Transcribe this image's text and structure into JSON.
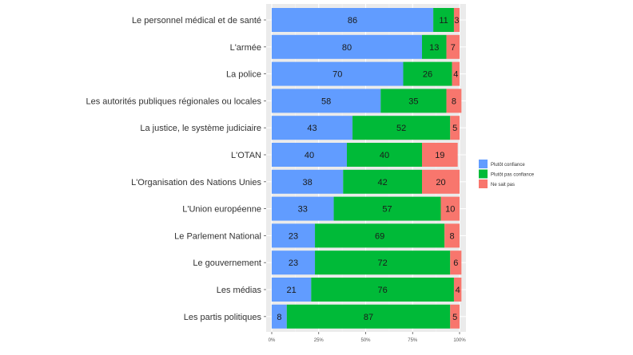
{
  "chart_data": {
    "type": "bar",
    "orientation": "horizontal",
    "stacked": true,
    "categories": [
      "Le personnel médical et de santé",
      "L'armée",
      "La police",
      "Les autorités publiques régionales ou locales",
      "La justice, le système judiciaire",
      "L'OTAN",
      "L'Organisation des Nations Unies",
      "L'Union européenne",
      "Le Parlement National",
      "Le gouvernement",
      "Les médias",
      "Les partis politiques"
    ],
    "series": [
      {
        "name": "Plutôt confiance",
        "color": "#619cff",
        "values": [
          86,
          80,
          70,
          58,
          43,
          40,
          38,
          33,
          23,
          23,
          21,
          8
        ]
      },
      {
        "name": "Plutôt pas confiance",
        "color": "#00ba38",
        "values": [
          11,
          13,
          26,
          35,
          52,
          40,
          42,
          57,
          69,
          72,
          76,
          87
        ]
      },
      {
        "name": "Ne sait pas",
        "color": "#f8766d",
        "values": [
          3,
          7,
          4,
          8,
          5,
          19,
          20,
          10,
          8,
          6,
          4,
          5
        ]
      }
    ],
    "xlim": [
      0,
      100
    ],
    "x_ticks": [
      "0%",
      "25%",
      "50%",
      "75%",
      "100%"
    ],
    "title": "",
    "xlabel": "",
    "ylabel": "",
    "grid": true,
    "panel_background": "#ebebeb",
    "legend_position": "right"
  }
}
